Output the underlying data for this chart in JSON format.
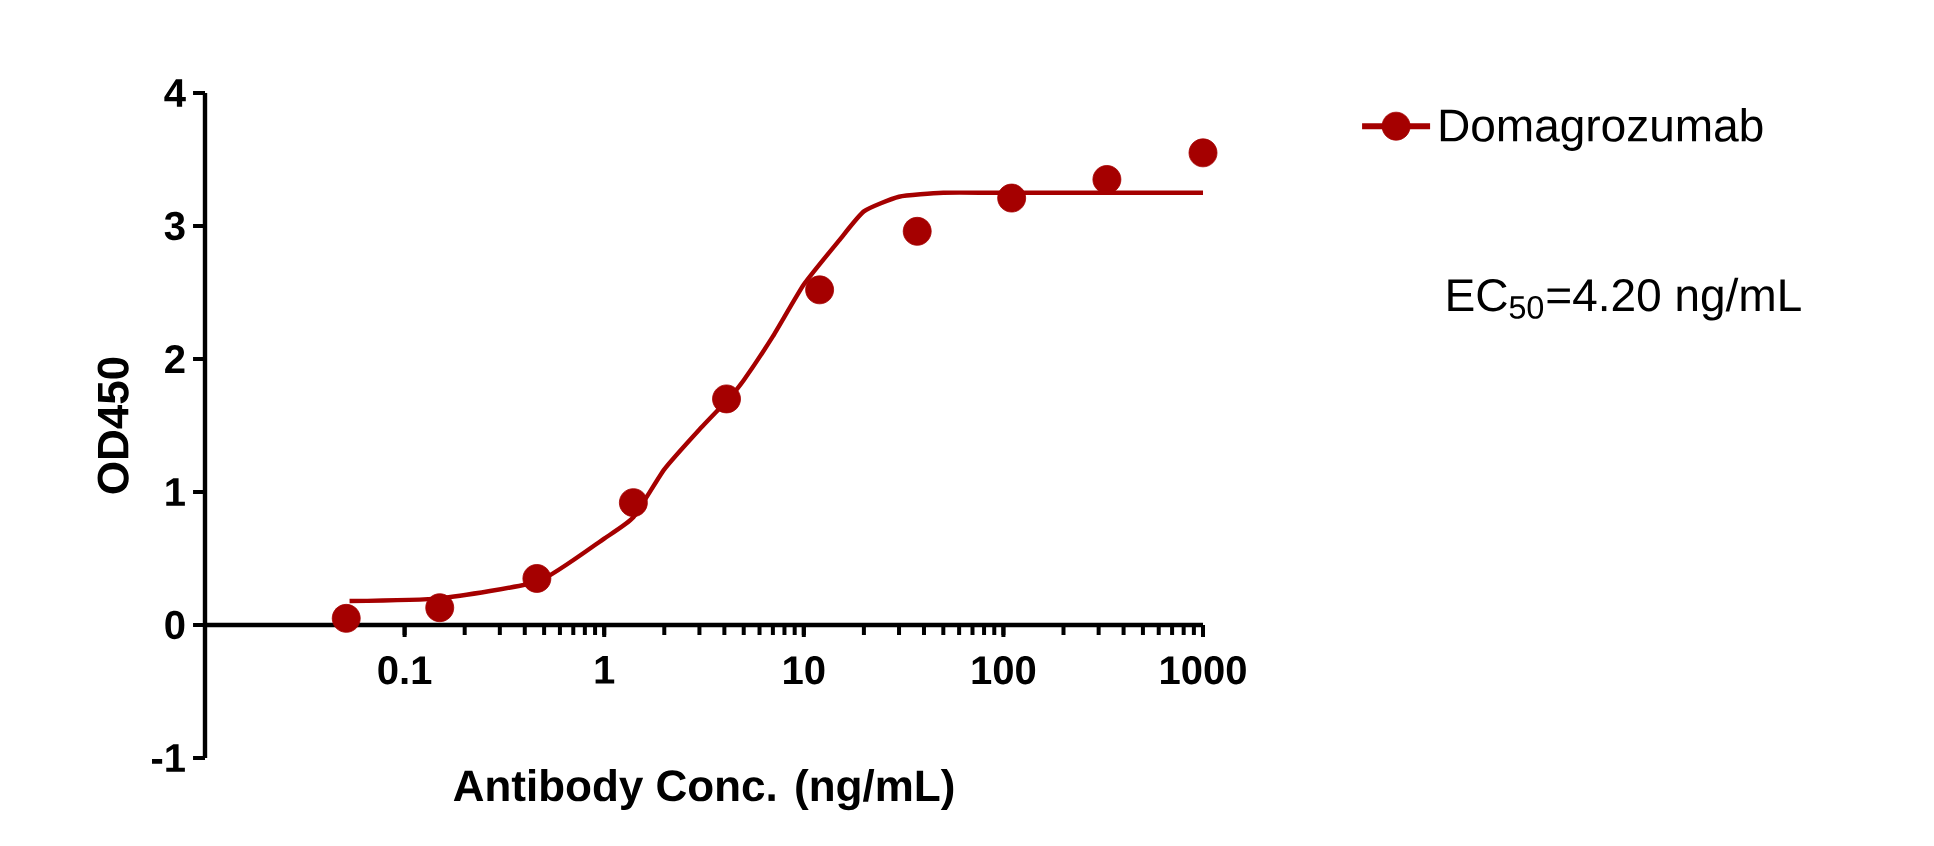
{
  "chart_data": {
    "type": "line",
    "xlabel": "Antibody Conc. (ng/mL)",
    "ylabel": "OD450",
    "log": "x",
    "xlim": [
      0.01,
      1000
    ],
    "xticks": [
      0.1,
      1,
      10,
      100,
      1000
    ],
    "ylim": [
      -1,
      4
    ],
    "yticks": [
      -1,
      0,
      1,
      2,
      3,
      4
    ],
    "grid": false,
    "legend": "top right",
    "marker": "circle",
    "annotations": [
      "EC$_{50}$=4.20 ng/mL"
    ],
    "series": [
      {
        "name": "Domagrozumab",
        "type": "scatter",
        "color": "#a50000",
        "x": [
          0.051,
          0.15,
          0.46,
          1.4,
          4.1,
          12,
          37,
          110,
          330,
          1000
        ],
        "values": [
          0.05,
          0.13,
          0.35,
          0.92,
          1.7,
          2.52,
          2.96,
          3.21,
          3.35,
          3.55
        ]
      },
      {
        "color": "#a50000",
        "marker": "none",
        "line_style": "solid",
        "x": [
          0.053,
          0.15,
          0.47,
          1,
          1.4,
          2,
          3,
          4.2,
          5,
          7,
          10,
          15,
          20,
          30,
          50,
          100,
          1000
        ],
        "values": [
          0.18,
          0.2,
          0.33,
          0.65,
          0.81,
          1.17,
          1.47,
          1.7,
          1.84,
          2.17,
          2.56,
          2.89,
          3.11,
          3.22,
          3.25,
          3.25,
          3.25
        ]
      }
    ]
  }
}
